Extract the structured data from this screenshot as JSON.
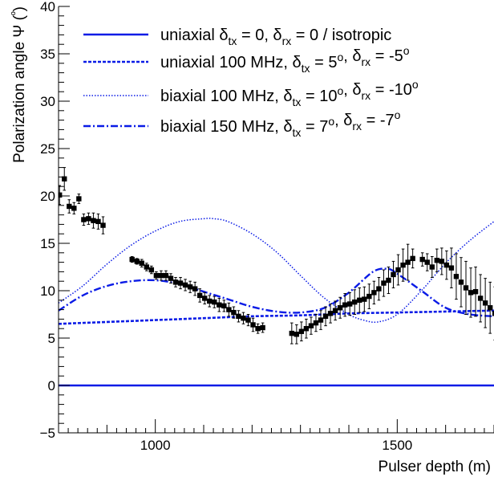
{
  "chart_data": {
    "type": "scatter",
    "xlabel": "Pulser depth (m)",
    "ylabel": "Polarization angle Ψ (º)",
    "xlim": [
      800,
      1700
    ],
    "ylim": [
      -5,
      40
    ],
    "x_ticks": [
      1000,
      1500
    ],
    "y_ticks": [
      -5,
      0,
      5,
      10,
      15,
      20,
      25,
      30,
      35,
      40
    ],
    "legend_position": "top",
    "colors": {
      "data": "#000000",
      "curves": "#0a1be6"
    },
    "legend": [
      {
        "id": "iso",
        "style": "solid",
        "main": "uniaxial δ",
        "parts": [
          [
            "tx",
            " = 0, δ"
          ],
          [
            "rx",
            " = 0 / isotropic"
          ]
        ]
      },
      {
        "id": "uni",
        "style": "dashed",
        "main": "uniaxial 100 MHz, δ",
        "parts": [
          [
            "tx",
            " = 5"
          ],
          [
            "sup",
            "o"
          ],
          [
            "",
            ", δ"
          ],
          [
            "rx",
            " = -5"
          ],
          [
            "sup",
            "o"
          ]
        ]
      },
      {
        "id": "bi100",
        "style": "dotted",
        "main": "biaxial 100 MHz, δ",
        "parts": [
          [
            "tx",
            " = 10"
          ],
          [
            "sup",
            "o"
          ],
          [
            "",
            ", δ"
          ],
          [
            "rx",
            " = -10"
          ],
          [
            "sup",
            "o"
          ]
        ]
      },
      {
        "id": "bi150",
        "style": "dashdot",
        "main": "biaxial 150 MHz, δ",
        "parts": [
          [
            "tx",
            " = 7"
          ],
          [
            "sup",
            "o"
          ],
          [
            "",
            ", δ"
          ],
          [
            "rx",
            " = -7"
          ],
          [
            "sup",
            "o"
          ]
        ]
      }
    ],
    "series": [
      {
        "id": "iso",
        "x": [
          800,
          1700
        ],
        "y": [
          0,
          0
        ]
      },
      {
        "id": "uni",
        "x": [
          800,
          900,
          1000,
          1100,
          1200,
          1300,
          1400,
          1500,
          1600,
          1700
        ],
        "y": [
          6.5,
          6.7,
          6.9,
          7.1,
          7.3,
          7.4,
          7.6,
          7.7,
          7.8,
          7.9
        ]
      },
      {
        "id": "bi100",
        "x": [
          800,
          850,
          900,
          950,
          1000,
          1050,
          1100,
          1120,
          1150,
          1200,
          1250,
          1300,
          1350,
          1400,
          1430,
          1460,
          1500,
          1550,
          1600,
          1650,
          1700
        ],
        "y": [
          8.7,
          10.5,
          12.8,
          14.8,
          16.3,
          17.3,
          17.6,
          17.6,
          17.3,
          16.0,
          14.1,
          11.6,
          9.2,
          7.5,
          6.9,
          6.7,
          7.5,
          10.0,
          12.9,
          15.3,
          17.3
        ]
      },
      {
        "id": "bi150",
        "x": [
          800,
          850,
          900,
          950,
          1000,
          1050,
          1100,
          1150,
          1200,
          1250,
          1300,
          1350,
          1400,
          1450,
          1480,
          1500,
          1550,
          1600,
          1650,
          1700
        ],
        "y": [
          7.9,
          9.5,
          10.5,
          11.0,
          11.1,
          10.7,
          9.9,
          9.1,
          8.3,
          7.8,
          7.7,
          8.2,
          9.8,
          12.0,
          12.3,
          11.8,
          10.0,
          8.2,
          7.5,
          7.3
        ]
      },
      {
        "id": "data",
        "x": [
          802,
          812,
          822,
          832,
          842,
          852,
          862,
          872,
          882,
          892,
          952,
          962,
          972,
          982,
          992,
          1002,
          1012,
          1022,
          1032,
          1042,
          1052,
          1062,
          1072,
          1082,
          1092,
          1102,
          1112,
          1122,
          1132,
          1142,
          1152,
          1162,
          1172,
          1182,
          1192,
          1202,
          1212,
          1222,
          1282,
          1292,
          1302,
          1312,
          1322,
          1332,
          1342,
          1352,
          1362,
          1372,
          1382,
          1392,
          1402,
          1412,
          1422,
          1432,
          1442,
          1452,
          1462,
          1472,
          1482,
          1492,
          1502,
          1512,
          1522,
          1532,
          1552,
          1562,
          1572,
          1582,
          1592,
          1602,
          1612,
          1622,
          1632,
          1642,
          1652,
          1662,
          1672,
          1682,
          1692,
          1702
        ],
        "y": [
          20.1,
          21.8,
          18.9,
          18.7,
          19.7,
          17.5,
          17.6,
          17.4,
          17.3,
          16.9,
          13.3,
          13.1,
          12.9,
          12.5,
          12.2,
          11.6,
          11.6,
          11.6,
          11.3,
          10.9,
          10.8,
          10.6,
          10.4,
          10.2,
          9.5,
          9.2,
          8.9,
          8.8,
          8.5,
          8.4,
          8.0,
          7.7,
          7.3,
          7.1,
          6.9,
          6.4,
          6.0,
          6.1,
          5.5,
          5.4,
          5.7,
          6.0,
          6.3,
          6.6,
          6.9,
          7.3,
          7.6,
          7.9,
          8.2,
          8.5,
          8.6,
          8.8,
          9.0,
          9.1,
          9.4,
          9.8,
          10.2,
          10.8,
          11.1,
          11.7,
          12.2,
          12.7,
          13.0,
          13.4,
          13.3,
          13.0,
          12.5,
          13.2,
          13.1,
          12.7,
          12.4,
          11.5,
          10.9,
          10.3,
          9.8,
          9.9,
          9.2,
          8.7,
          8.2,
          7.6
        ],
        "err": [
          1.0,
          1.2,
          0.7,
          0.6,
          0.5,
          0.6,
          0.6,
          0.8,
          0.8,
          0.9,
          0.3,
          0.3,
          0.4,
          0.4,
          0.4,
          0.4,
          0.5,
          0.5,
          0.5,
          0.5,
          0.6,
          0.6,
          0.6,
          0.7,
          0.7,
          0.6,
          0.6,
          0.6,
          0.7,
          0.6,
          0.7,
          0.6,
          0.6,
          0.6,
          0.6,
          0.7,
          0.5,
          0.5,
          1.1,
          1.0,
          1.0,
          1.0,
          0.9,
          0.9,
          1.0,
          1.0,
          1.0,
          1.0,
          1.1,
          1.2,
          1.2,
          1.3,
          1.3,
          1.3,
          1.3,
          1.2,
          1.2,
          1.4,
          1.4,
          1.4,
          1.6,
          1.7,
          1.9,
          1.0,
          0.7,
          0.9,
          1.1,
          1.2,
          1.4,
          1.5,
          2.1,
          2.4,
          2.6,
          2.8,
          2.6,
          2.6,
          2.5,
          2.6,
          2.7,
          2.8
        ]
      }
    ]
  }
}
